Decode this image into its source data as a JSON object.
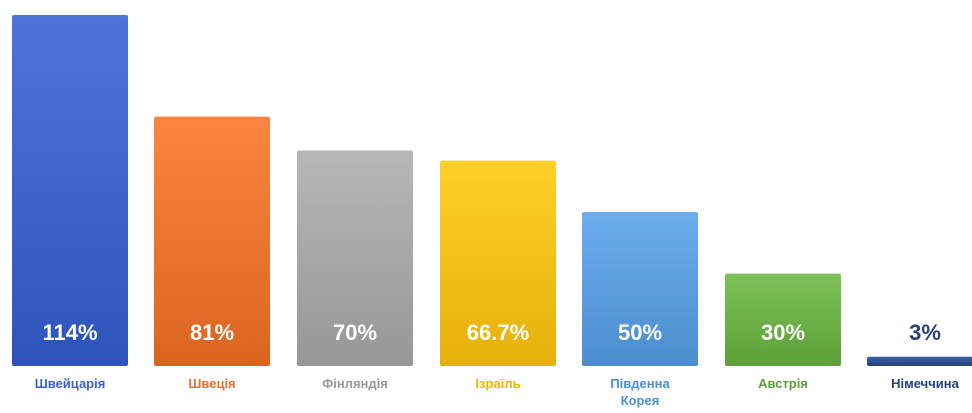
{
  "chart_data": {
    "type": "bar",
    "title": "",
    "xlabel": "",
    "ylabel": "",
    "ylim": [
      0,
      114
    ],
    "grid": false,
    "legend": "none",
    "categories": [
      [
        "Швейцарія"
      ],
      [
        "Швеція"
      ],
      [
        "Фінляндія"
      ],
      [
        "Ізраїль"
      ],
      [
        "Південна",
        "Корея"
      ],
      [
        "Австрія"
      ],
      [
        "Німеччина"
      ]
    ],
    "values": [
      114,
      81,
      70,
      66.7,
      50,
      30,
      3
    ],
    "value_labels": [
      "114%",
      "81%",
      "70%",
      "66.7%",
      "50%",
      "30%",
      "3%"
    ],
    "colors": [
      "#3a62c8",
      "#e8732f",
      "#a5a5a5",
      "#f4be18",
      "#5a9bdc",
      "#6aae45",
      "#2f4d8f"
    ],
    "label_colors": [
      "#3a62c8",
      "#e8732f",
      "#9a9a9a",
      "#f0b400",
      "#4a90d9",
      "#5a9e35",
      "#24407f"
    ],
    "value_label_colors": [
      "#ffffff",
      "#ffffff",
      "#ffffff",
      "#ffffff",
      "#ffffff",
      "#ffffff",
      "#24407f"
    ]
  }
}
